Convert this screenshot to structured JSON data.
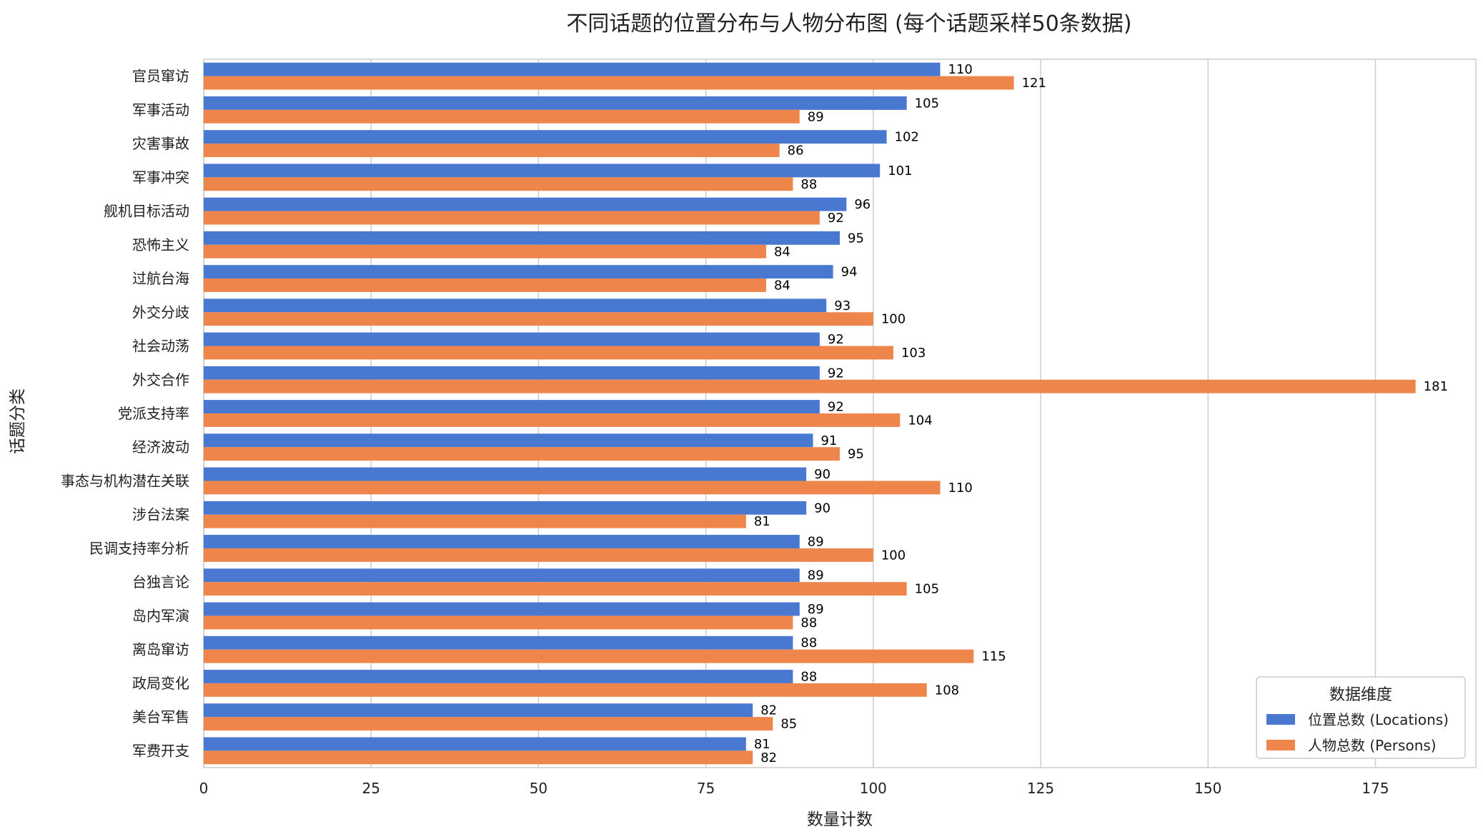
{
  "chart_data": {
    "type": "bar",
    "orientation": "horizontal",
    "title": "不同话题的位置分布与人物分布图 (每个话题采样50条数据)",
    "xlabel": "数量计数",
    "ylabel": "话题分类",
    "xlim": [
      0,
      190
    ],
    "xticks": [
      0,
      25,
      50,
      75,
      100,
      125,
      150,
      175
    ],
    "grid": "vertical",
    "legend": {
      "title": "数据维度",
      "position": "bottom-right"
    },
    "categories": [
      "官员窜访",
      "军事活动",
      "灾害事故",
      "军事冲突",
      "舰机目标活动",
      "恐怖主义",
      "过航台海",
      "外交分歧",
      "社会动荡",
      "外交合作",
      "党派支持率",
      "经济波动",
      "事态与机构潜在关联",
      "涉台法案",
      "民调支持率分析",
      "台独言论",
      "岛内军演",
      "离岛窜访",
      "政局变化",
      "美台军售",
      "军费开支"
    ],
    "series": [
      {
        "name": "位置总数 (Locations)",
        "color": "#4878d0",
        "values": [
          110,
          105,
          102,
          101,
          96,
          95,
          94,
          93,
          92,
          92,
          92,
          91,
          90,
          90,
          89,
          89,
          89,
          88,
          88,
          82,
          81
        ]
      },
      {
        "name": "人物总数 (Persons)",
        "color": "#ee854a",
        "values": [
          121,
          89,
          86,
          88,
          92,
          84,
          84,
          100,
          103,
          181,
          104,
          95,
          110,
          81,
          100,
          105,
          88,
          115,
          108,
          85,
          82
        ]
      }
    ]
  }
}
